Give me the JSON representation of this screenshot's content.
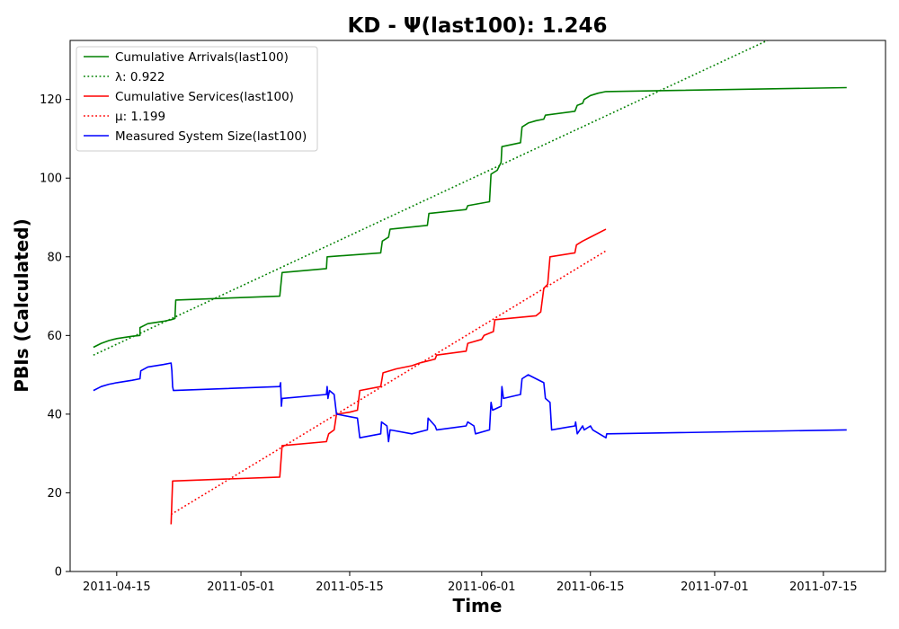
{
  "chart_data": {
    "type": "line",
    "title": "KD -  Ψ(last100): 1.246",
    "xlabel": "Time",
    "ylabel": "PBIs (Calculated)",
    "xlim": [
      "2011-04-09",
      "2011-07-23"
    ],
    "ylim": [
      0,
      135
    ],
    "x_ticks": [
      "2011-04-15",
      "2011-05-01",
      "2011-05-15",
      "2011-06-01",
      "2011-06-15",
      "2011-07-01",
      "2011-07-15"
    ],
    "y_ticks": [
      0,
      20,
      40,
      60,
      80,
      100,
      120
    ],
    "legend_position": "upper left",
    "series": [
      {
        "name": "Cumulative Arrivals(last100)",
        "color": "#008000",
        "style": "solid",
        "points": [
          [
            "2011-04-12",
            57
          ],
          [
            "2011-04-13",
            58
          ],
          [
            "2011-04-14",
            58.7
          ],
          [
            "2011-04-15",
            59.2
          ],
          [
            "2011-04-17",
            59.8
          ],
          [
            "2011-04-18",
            60
          ],
          [
            "2011-04-18",
            62
          ],
          [
            "2011-04-19",
            63
          ],
          [
            "2011-04-21",
            63.6
          ],
          [
            "2011-04-22",
            64
          ],
          [
            "2011-04-22.5",
            64.3
          ],
          [
            "2011-04-22.6",
            69
          ],
          [
            "2011-05-06",
            70
          ],
          [
            "2011-05-06.3",
            76
          ],
          [
            "2011-05-12",
            77
          ],
          [
            "2011-05-12.1",
            80
          ],
          [
            "2011-05-19",
            81
          ],
          [
            "2011-05-19.2",
            84
          ],
          [
            "2011-05-20",
            85
          ],
          [
            "2011-05-20.2",
            87
          ],
          [
            "2011-05-25",
            88
          ],
          [
            "2011-05-25.2",
            91
          ],
          [
            "2011-05-30",
            92
          ],
          [
            "2011-05-30.2",
            93
          ],
          [
            "2011-06-02",
            94
          ],
          [
            "2011-06-02.2",
            101
          ],
          [
            "2011-06-03",
            102
          ],
          [
            "2011-06-03.5",
            104
          ],
          [
            "2011-06-03.6",
            108
          ],
          [
            "2011-06-06",
            109
          ],
          [
            "2011-06-06.2",
            113
          ],
          [
            "2011-06-07",
            114
          ],
          [
            "2011-06-08",
            114.6
          ],
          [
            "2011-06-09",
            115
          ],
          [
            "2011-06-09.2",
            116
          ],
          [
            "2011-06-13",
            117
          ],
          [
            "2011-06-13.3",
            118.5
          ],
          [
            "2011-06-14",
            119
          ],
          [
            "2011-06-14.2",
            120
          ],
          [
            "2011-06-15",
            121
          ],
          [
            "2011-06-16",
            121.6
          ],
          [
            "2011-06-17",
            122
          ],
          [
            "2011-07-18",
            123
          ]
        ]
      },
      {
        "name": "λ: 0.922",
        "color": "#008000",
        "style": "dotted",
        "points": [
          [
            "2011-04-12",
            55
          ],
          [
            "2011-07-23",
            149
          ]
        ]
      },
      {
        "name": "Cumulative Services(last100)",
        "color": "#ff0000",
        "style": "solid",
        "points": [
          [
            "2011-04-22",
            12
          ],
          [
            "2011-04-22.2",
            23
          ],
          [
            "2011-05-06",
            24
          ],
          [
            "2011-05-06.3",
            32
          ],
          [
            "2011-05-12",
            33
          ],
          [
            "2011-05-12.3",
            35
          ],
          [
            "2011-05-13",
            36
          ],
          [
            "2011-05-13.3",
            40
          ],
          [
            "2011-05-15",
            40.5
          ],
          [
            "2011-05-16",
            41
          ],
          [
            "2011-05-16.3",
            46
          ],
          [
            "2011-05-19",
            47
          ],
          [
            "2011-05-19.3",
            50.5
          ],
          [
            "2011-05-21",
            51.5
          ],
          [
            "2011-05-23",
            52.3
          ],
          [
            "2011-05-24",
            53
          ],
          [
            "2011-05-25",
            53.5
          ],
          [
            "2011-05-26",
            54
          ],
          [
            "2011-05-26.2",
            55
          ],
          [
            "2011-05-30",
            56
          ],
          [
            "2011-05-30.2",
            58
          ],
          [
            "2011-06-01",
            59
          ],
          [
            "2011-06-01.3",
            60
          ],
          [
            "2011-06-02.5",
            61
          ],
          [
            "2011-06-02.7",
            64
          ],
          [
            "2011-06-08",
            65
          ],
          [
            "2011-06-08.6",
            66
          ],
          [
            "2011-06-09",
            72
          ],
          [
            "2011-06-09.5",
            73
          ],
          [
            "2011-06-09.8",
            80
          ],
          [
            "2011-06-13",
            81
          ],
          [
            "2011-06-13.2",
            83
          ],
          [
            "2011-06-14",
            84
          ],
          [
            "2011-06-15",
            85
          ],
          [
            "2011-06-17",
            87
          ]
        ]
      },
      {
        "name": "μ: 1.199",
        "color": "#ff0000",
        "style": "dotted",
        "points": [
          [
            "2011-04-22",
            14.5
          ],
          [
            "2011-06-17",
            81.5
          ]
        ]
      },
      {
        "name": "Measured System Size(last100)",
        "color": "#0000ff",
        "style": "solid",
        "points": [
          [
            "2011-04-12",
            46
          ],
          [
            "2011-04-13",
            47
          ],
          [
            "2011-04-14",
            47.6
          ],
          [
            "2011-04-15",
            48
          ],
          [
            "2011-04-17",
            48.6
          ],
          [
            "2011-04-18",
            49
          ],
          [
            "2011-04-18.1",
            51
          ],
          [
            "2011-04-19",
            52
          ],
          [
            "2011-04-21",
            52.6
          ],
          [
            "2011-04-22",
            53
          ],
          [
            "2011-04-22.1",
            51
          ],
          [
            "2011-04-22.2",
            47
          ],
          [
            "2011-04-22.3",
            46
          ],
          [
            "2011-05-06",
            47
          ],
          [
            "2011-05-06.1",
            48
          ],
          [
            "2011-05-06.2",
            42
          ],
          [
            "2011-05-06.3",
            44
          ],
          [
            "2011-05-12",
            45
          ],
          [
            "2011-05-12.1",
            47
          ],
          [
            "2011-05-12.2",
            44
          ],
          [
            "2011-05-12.4",
            46
          ],
          [
            "2011-05-13",
            45
          ],
          [
            "2011-05-13.3",
            40
          ],
          [
            "2011-05-16",
            39
          ],
          [
            "2011-05-16.3",
            34
          ],
          [
            "2011-05-19",
            35
          ],
          [
            "2011-05-19.1",
            38
          ],
          [
            "2011-05-19.8",
            37
          ],
          [
            "2011-05-20",
            33
          ],
          [
            "2011-05-20.2",
            36
          ],
          [
            "2011-05-23",
            35
          ],
          [
            "2011-05-25",
            36
          ],
          [
            "2011-05-25.1",
            39
          ],
          [
            "2011-05-26",
            37
          ],
          [
            "2011-05-26.2",
            36
          ],
          [
            "2011-05-30",
            37
          ],
          [
            "2011-05-30.2",
            38
          ],
          [
            "2011-05-31",
            37
          ],
          [
            "2011-05-31.2",
            35
          ],
          [
            "2011-06-02",
            36
          ],
          [
            "2011-06-02.2",
            43
          ],
          [
            "2011-06-02.4",
            41
          ],
          [
            "2011-06-03.5",
            42
          ],
          [
            "2011-06-03.6",
            47
          ],
          [
            "2011-06-03.8",
            44
          ],
          [
            "2011-06-06",
            45
          ],
          [
            "2011-06-06.2",
            49
          ],
          [
            "2011-06-07",
            50
          ],
          [
            "2011-06-09",
            48
          ],
          [
            "2011-06-09.2",
            44
          ],
          [
            "2011-06-09.8",
            43
          ],
          [
            "2011-06-10",
            36
          ],
          [
            "2011-06-13",
            37
          ],
          [
            "2011-06-13.1",
            38
          ],
          [
            "2011-06-13.3",
            35
          ],
          [
            "2011-06-14",
            37
          ],
          [
            "2011-06-14.2",
            36
          ],
          [
            "2011-06-15",
            37
          ],
          [
            "2011-06-15.3",
            36
          ],
          [
            "2011-06-17",
            34
          ],
          [
            "2011-06-17.1",
            35
          ],
          [
            "2011-07-18",
            36
          ]
        ]
      }
    ]
  }
}
